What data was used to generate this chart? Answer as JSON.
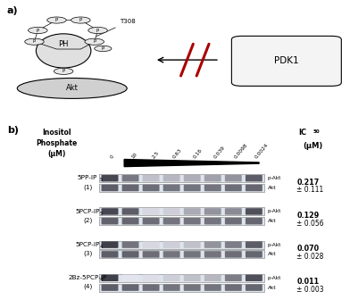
{
  "fig_width": 3.92,
  "fig_height": 3.45,
  "bg_color": "#ffffff",
  "panel_a_label": "a)",
  "panel_b_label": "b)",
  "concentrations": [
    "0",
    "10",
    "2.5",
    "0.63",
    "0.16",
    "0.039",
    "0.0098",
    "0.0024"
  ],
  "compounds": [
    {
      "name_line1": "5PP-IP",
      "name_sub": "5",
      "name_line2": "(1)",
      "ic50_bold": "0.217",
      "ic50_rest": "± 0.111"
    },
    {
      "name_line1": "5PCP-IP",
      "name_sub": "5",
      "name_line2": "(2)",
      "ic50_bold": "0.129",
      "ic50_rest": "± 0.056"
    },
    {
      "name_line1": "5PCP-IP",
      "name_sub": "4",
      "name_line2": "(3)",
      "ic50_bold": "0.070",
      "ic50_rest": "± 0.028"
    },
    {
      "name_line1": "2Bz-5PCP-IP",
      "name_sub": "4",
      "name_line2": "(4)",
      "ic50_bold": "0.011",
      "ic50_rest": "± 0.003"
    }
  ],
  "pakt_intensities": [
    [
      0.82,
      0.6,
      0.28,
      0.32,
      0.36,
      0.42,
      0.48,
      0.72
    ],
    [
      0.82,
      0.72,
      0.18,
      0.22,
      0.38,
      0.48,
      0.52,
      0.78
    ],
    [
      0.85,
      0.62,
      0.18,
      0.22,
      0.28,
      0.48,
      0.58,
      0.72
    ],
    [
      0.85,
      0.12,
      0.15,
      0.22,
      0.28,
      0.32,
      0.58,
      0.78
    ]
  ],
  "akt_intensities": [
    [
      0.72,
      0.68,
      0.65,
      0.62,
      0.62,
      0.62,
      0.65,
      0.68
    ],
    [
      0.7,
      0.68,
      0.65,
      0.62,
      0.62,
      0.62,
      0.65,
      0.68
    ],
    [
      0.72,
      0.7,
      0.65,
      0.62,
      0.62,
      0.62,
      0.65,
      0.68
    ],
    [
      0.72,
      0.68,
      0.65,
      0.62,
      0.62,
      0.62,
      0.65,
      0.68
    ]
  ],
  "header_line1": "Inositol",
  "header_line2": "Phosphate",
  "header_line3": "(μM)",
  "pakt_label": "p-Akt",
  "akt_label": "Akt",
  "pdk1_label": "PDK1",
  "t308_label": "T308",
  "ph_label": "PH",
  "akt_diag_label": "Akt",
  "inhibit_color": "#aa0000"
}
